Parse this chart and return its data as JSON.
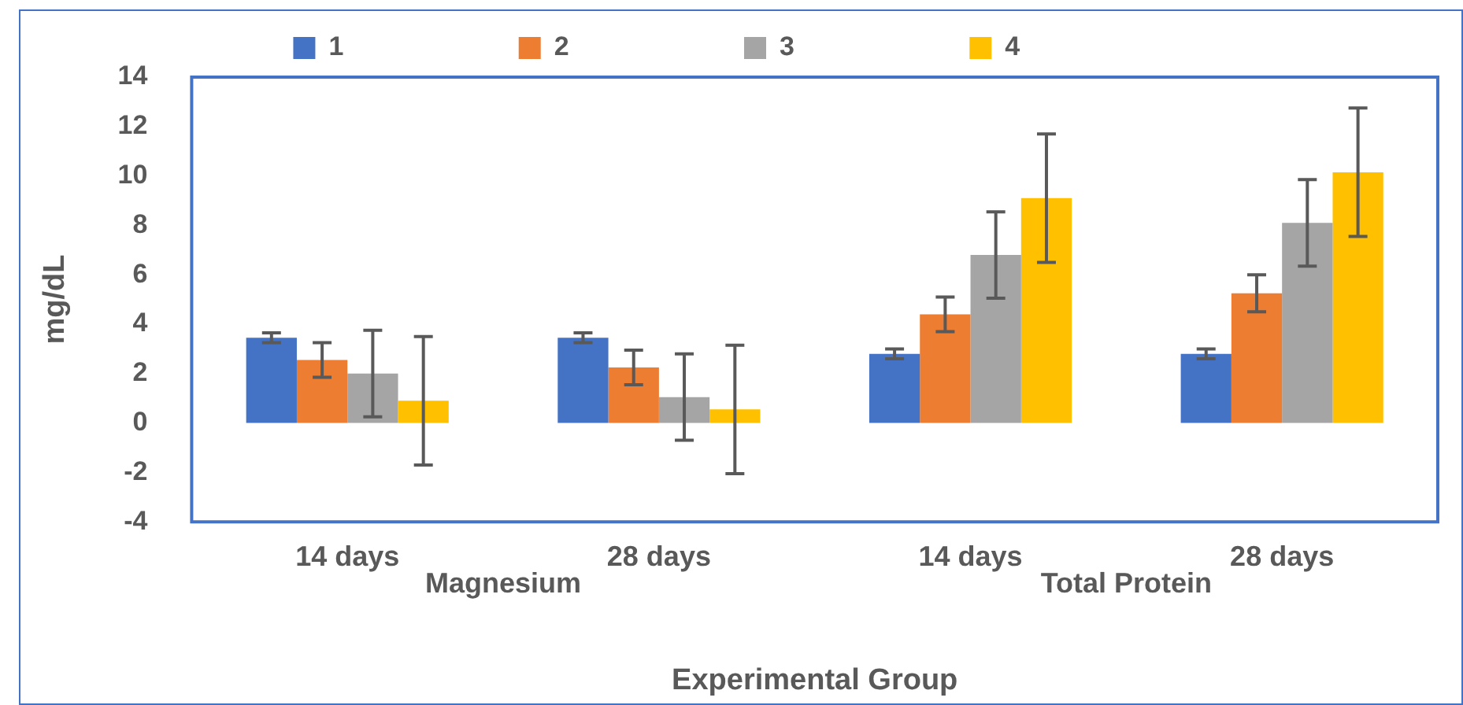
{
  "chart_data": {
    "type": "bar",
    "xlabel": "Experimental Group",
    "ylabel": "mg/dL",
    "categories": [
      "14 days",
      "28 days",
      "14 days",
      "28 days"
    ],
    "annotations": [
      "Magnesium",
      "Total Protein"
    ],
    "series": [
      {
        "name": "1",
        "color": "#4472c4",
        "values": [
          3.45,
          3.45,
          2.8,
          2.8
        ],
        "errors": [
          0.2,
          0.2,
          0.2,
          0.2
        ]
      },
      {
        "name": "2",
        "color": "#ed7d31",
        "values": [
          2.55,
          2.25,
          4.4,
          5.25
        ],
        "errors": [
          0.7,
          0.7,
          0.7,
          0.75
        ]
      },
      {
        "name": "3",
        "color": "#a5a5a5",
        "values": [
          2.0,
          1.05,
          6.8,
          8.1
        ],
        "errors": [
          1.75,
          1.75,
          1.75,
          1.75
        ]
      },
      {
        "name": "4",
        "color": "#ffc000",
        "values": [
          0.9,
          0.55,
          9.1,
          10.15
        ],
        "errors": [
          2.6,
          2.6,
          2.6,
          2.6
        ]
      }
    ],
    "ylim": [
      -4,
      14
    ],
    "yticks": [
      -4,
      -2,
      0,
      2,
      4,
      6,
      8,
      10,
      12,
      14
    ],
    "grid": false,
    "legend": "top"
  }
}
